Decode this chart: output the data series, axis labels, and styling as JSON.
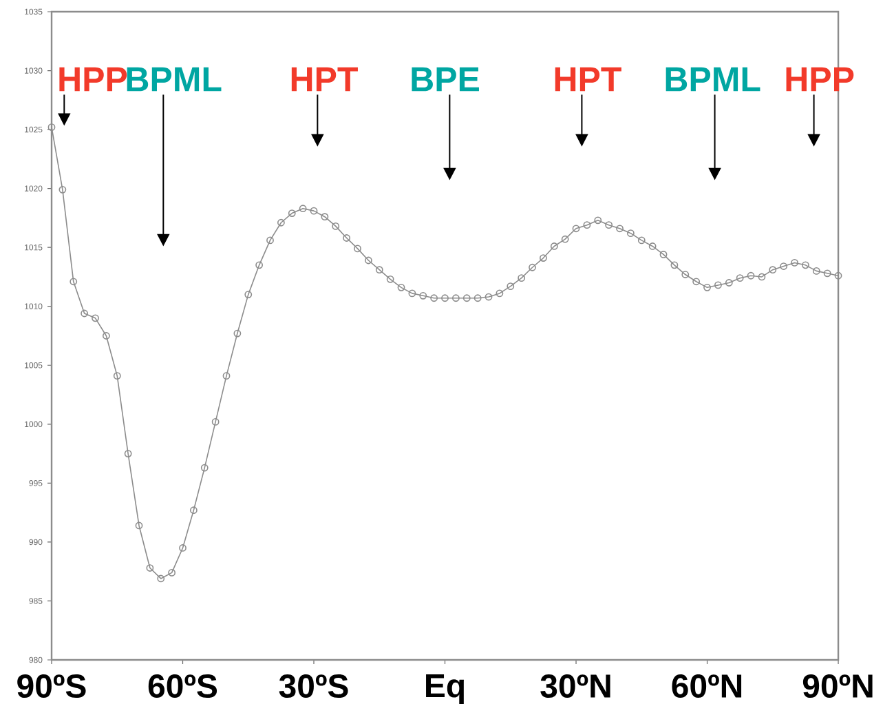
{
  "chart_data": {
    "type": "line",
    "x": [
      -90,
      -87.5,
      -85,
      -82.5,
      -80,
      -77.5,
      -75,
      -72.5,
      -70,
      -67.5,
      -65,
      -62.5,
      -60,
      -57.5,
      -55,
      -52.5,
      -50,
      -47.5,
      -45,
      -42.5,
      -40,
      -37.5,
      -35,
      -32.5,
      -30,
      -27.5,
      -25,
      -22.5,
      -20,
      -17.5,
      -15,
      -12.5,
      -10,
      -7.5,
      -5,
      -2.5,
      0,
      2.5,
      5,
      7.5,
      10,
      12.5,
      15,
      17.5,
      20,
      22.5,
      25,
      27.5,
      30,
      32.5,
      35,
      37.5,
      40,
      42.5,
      45,
      47.5,
      50,
      52.5,
      55,
      57.5,
      60,
      62.5,
      65,
      67.5,
      70,
      72.5,
      75,
      77.5,
      80,
      82.5,
      85,
      87.5,
      90
    ],
    "series": [
      {
        "color": "#8c8c8c",
        "values": [
          1025.2,
          1019.9,
          1012.1,
          1009.4,
          1009.0,
          1007.5,
          1004.1,
          997.5,
          991.4,
          987.8,
          986.9,
          987.4,
          989.5,
          992.7,
          996.3,
          1000.2,
          1004.1,
          1007.7,
          1011.0,
          1013.5,
          1015.6,
          1017.1,
          1017.9,
          1018.3,
          1018.1,
          1017.6,
          1016.8,
          1015.8,
          1014.9,
          1013.9,
          1013.1,
          1012.3,
          1011.6,
          1011.1,
          1010.9,
          1010.7,
          1010.7,
          1010.7,
          1010.7,
          1010.7,
          1010.8,
          1011.1,
          1011.7,
          1012.4,
          1013.3,
          1014.1,
          1015.1,
          1015.7,
          1016.6,
          1016.9,
          1017.3,
          1016.9,
          1016.6,
          1016.2,
          1015.6,
          1015.1,
          1014.4,
          1013.5,
          1012.7,
          1012.1,
          1011.6,
          1011.8,
          1012.0,
          1012.4,
          1012.6,
          1012.5,
          1013.1,
          1013.4,
          1013.7,
          1013.5,
          1013.0,
          1012.8,
          1012.6
        ]
      }
    ],
    "xlim": [
      -90,
      90
    ],
    "xticks": [
      {
        "value": -90,
        "label": "90ºS"
      },
      {
        "value": -60,
        "label": "60ºS"
      },
      {
        "value": -30,
        "label": "30ºS"
      },
      {
        "value": 0,
        "label": "Eq"
      },
      {
        "value": 30,
        "label": "30ºN"
      },
      {
        "value": 60,
        "label": "60ºN"
      },
      {
        "value": 90,
        "label": "90ºN"
      }
    ],
    "ylim": [
      980,
      1035
    ],
    "yticks": [
      980,
      985,
      990,
      995,
      1000,
      1005,
      1010,
      1015,
      1020,
      1025,
      1030,
      1035
    ],
    "marker": "circle",
    "line_style": "solid",
    "annotations": [
      "HPP",
      "BPML",
      "HPT",
      "BPE",
      "HPT",
      "BPML",
      "HPP"
    ]
  }
}
